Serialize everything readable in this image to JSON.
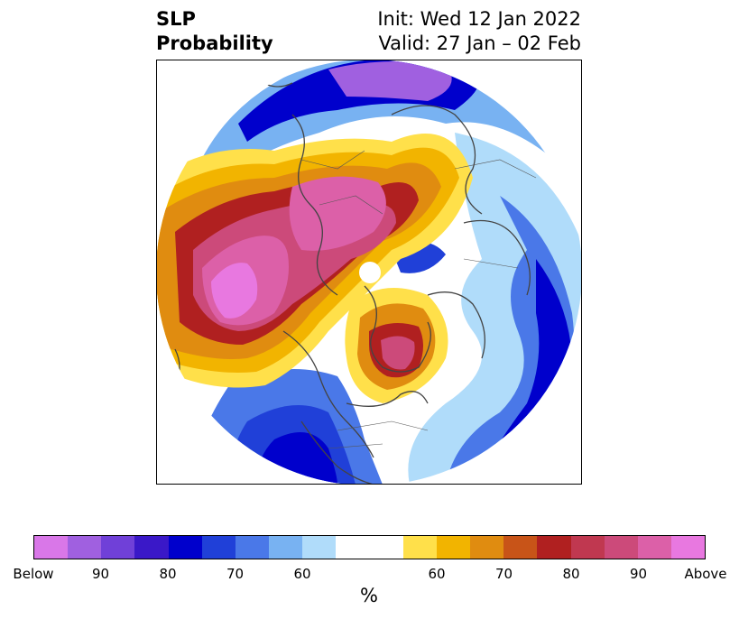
{
  "header": {
    "title_line1": "SLP",
    "title_line2": "Probability",
    "init_text": "Init: Wed 12 Jan 2022",
    "valid_text": "Valid: 27 Jan – 02 Feb"
  },
  "colorbar": {
    "unit": "%",
    "colors": [
      "#d977e8",
      "#a060e0",
      "#7040d8",
      "#3a18c8",
      "#0000cc",
      "#2040d8",
      "#4a78e8",
      "#78b2f2",
      "#b0dcfa",
      "#ffffff",
      "#ffffff",
      "#ffe04a",
      "#f2b400",
      "#e08c10",
      "#c85418",
      "#b02020",
      "#c03850",
      "#cc4a7a",
      "#dc60a8",
      "#e878e0"
    ],
    "tick_labels": [
      "Below",
      "90",
      "80",
      "70",
      "60",
      "60",
      "70",
      "80",
      "90",
      "Above"
    ]
  },
  "map": {
    "projection": "north-polar-stereographic",
    "palette": {
      "above_max": "#e878e0",
      "above_90": "#dc60a8",
      "above_85": "#cc4a7a",
      "above_80": "#b02020",
      "above_75": "#c85418",
      "above_70": "#e08c10",
      "above_65": "#f2b400",
      "above_60": "#ffe04a",
      "neutral": "#ffffff",
      "below_60": "#b0dcfa",
      "below_65": "#78b2f2",
      "below_70": "#4a78e8",
      "below_75": "#2040d8",
      "below_80": "#0000cc",
      "below_85": "#3a18c8",
      "below_90": "#7040d8",
      "below_max": "#a060e0",
      "coastline": "#444444",
      "border": "#555555"
    }
  }
}
